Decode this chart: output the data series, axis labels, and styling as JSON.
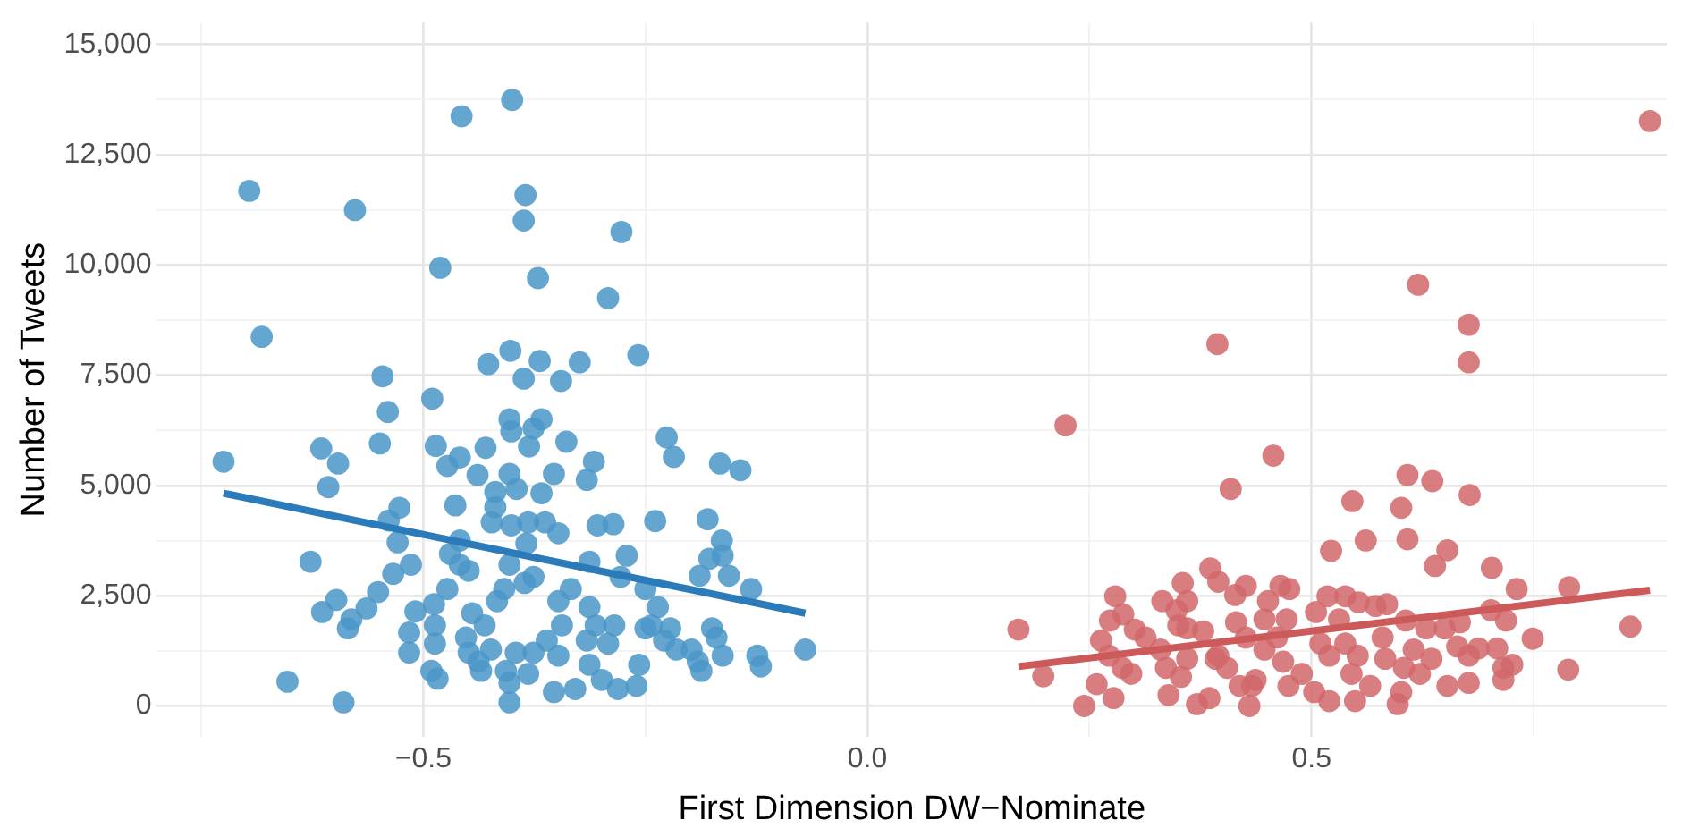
{
  "chart_data": {
    "type": "scatter",
    "xlabel": "First Dimension DW−Nominate",
    "ylabel": "Number of Tweets",
    "xlim": [
      -0.8,
      0.9
    ],
    "ylim": [
      -700,
      15500
    ],
    "xticks": [
      {
        "value": -0.75,
        "label": null
      },
      {
        "value": -0.5,
        "label": "−0.5"
      },
      {
        "value": -0.25,
        "label": null
      },
      {
        "value": 0,
        "label": "0.0"
      },
      {
        "value": 0.25,
        "label": null
      },
      {
        "value": 0.5,
        "label": "0.5"
      },
      {
        "value": 0.75,
        "label": null
      }
    ],
    "yticks": [
      {
        "value": 0,
        "label": "0"
      },
      {
        "value": 1250,
        "label": null
      },
      {
        "value": 2500,
        "label": "2,500"
      },
      {
        "value": 3750,
        "label": null
      },
      {
        "value": 5000,
        "label": "5,000"
      },
      {
        "value": 6250,
        "label": null
      },
      {
        "value": 7500,
        "label": "7,500"
      },
      {
        "value": 8750,
        "label": null
      },
      {
        "value": 10000,
        "label": "10,000"
      },
      {
        "value": 11250,
        "label": null
      },
      {
        "value": 12500,
        "label": "12,500"
      },
      {
        "value": 13750,
        "label": null
      },
      {
        "value": 15000,
        "label": "15,000"
      }
    ],
    "grid": true,
    "legend": false,
    "marker": "circle",
    "series": [
      {
        "type": "scatter",
        "color": "#4a96c9",
        "x": [
          -0.4,
          -0.457,
          -0.696,
          -0.577,
          -0.385,
          -0.387,
          -0.277,
          -0.481,
          -0.371,
          -0.292,
          -0.682,
          -0.402,
          -0.427,
          -0.369,
          -0.324,
          -0.258,
          -0.546,
          -0.387,
          -0.345,
          -0.49,
          -0.54,
          -0.725,
          -0.615,
          -0.596,
          -0.549,
          -0.607,
          -0.486,
          -0.473,
          -0.459,
          -0.43,
          -0.403,
          -0.376,
          -0.367,
          -0.401,
          -0.381,
          -0.339,
          -0.308,
          -0.316,
          -0.439,
          -0.403,
          -0.395,
          -0.367,
          -0.353,
          -0.419,
          -0.419,
          -0.464,
          -0.527,
          -0.539,
          -0.423,
          -0.401,
          -0.382,
          -0.363,
          -0.348,
          -0.304,
          -0.286,
          -0.239,
          -0.226,
          -0.218,
          -0.166,
          -0.143,
          -0.18,
          -0.164,
          -0.163,
          -0.178,
          -0.189,
          -0.156,
          -0.131,
          -0.627,
          -0.529,
          -0.534,
          -0.514,
          -0.551,
          -0.598,
          -0.564,
          -0.614,
          -0.581,
          -0.585,
          -0.509,
          -0.516,
          -0.516,
          -0.488,
          -0.487,
          -0.487,
          -0.473,
          -0.449,
          -0.459,
          -0.47,
          -0.384,
          -0.376,
          -0.386,
          -0.409,
          -0.417,
          -0.445,
          -0.431,
          -0.452,
          -0.438,
          -0.407,
          -0.382,
          -0.403,
          -0.403,
          -0.491,
          -0.484,
          -0.653,
          -0.59,
          -0.353,
          -0.329,
          -0.299,
          -0.281,
          -0.26,
          -0.257,
          -0.313,
          -0.348,
          -0.361,
          -0.344,
          -0.348,
          -0.334,
          -0.313,
          -0.306,
          -0.316,
          -0.285,
          -0.292,
          -0.313,
          -0.271,
          -0.278,
          -0.25,
          -0.236,
          -0.243,
          -0.25,
          -0.222,
          -0.229,
          -0.215,
          -0.198,
          -0.187,
          -0.191,
          -0.175,
          -0.17,
          -0.163,
          -0.124,
          -0.12,
          -0.07,
          -0.396,
          -0.376,
          -0.424,
          -0.449,
          -0.435,
          -0.459,
          -0.403
        ],
        "values": [
          13745,
          13375,
          11683,
          11246,
          11588,
          11011,
          10751,
          9939,
          9704,
          9250,
          8372,
          8054,
          7753,
          7823,
          7794,
          7959,
          7477,
          7423,
          7370,
          6970,
          6668,
          5540,
          5842,
          5498,
          5953,
          4963,
          5897,
          5444,
          5636,
          5856,
          6502,
          6296,
          6502,
          6227,
          5884,
          5993,
          5540,
          5127,
          5237,
          5265,
          4921,
          4825,
          5265,
          4853,
          4509,
          4550,
          4495,
          4206,
          4165,
          4096,
          4165,
          4165,
          3918,
          4096,
          4124,
          4193,
          6090,
          5650,
          5498,
          5347,
          4234,
          3753,
          3409,
          3340,
          2955,
          2955,
          2653,
          3272,
          3712,
          2997,
          3203,
          2584,
          2406,
          2213,
          2131,
          1965,
          1760,
          2144,
          1663,
          1210,
          2309,
          1828,
          1416,
          2653,
          3066,
          3753,
          3450,
          3684,
          2929,
          2790,
          2653,
          2378,
          2103,
          1828,
          1553,
          1004,
          797,
          729,
          522,
          82,
          797,
          619,
          550,
          82,
          316,
          385,
          591,
          385,
          454,
          935,
          935,
          1141,
          1485,
          1828,
          2378,
          2653,
          2241,
          1828,
          1485,
          1828,
          1416,
          3272,
          3409,
          2929,
          2653,
          2241,
          1828,
          1760,
          1760,
          1485,
          1278,
          1278,
          797,
          1004,
          1760,
          1553,
          1141,
          1141,
          897,
          1278,
          1210,
          1210,
          1278,
          1210,
          797,
          3203,
          3203
        ]
      },
      {
        "type": "scatter",
        "color": "#d1676a",
        "x": [
          0.881,
          0.62,
          0.677,
          0.677,
          0.394,
          0.223,
          0.457,
          0.409,
          0.546,
          0.608,
          0.636,
          0.678,
          0.601,
          0.561,
          0.608,
          0.653,
          0.522,
          0.639,
          0.703,
          0.731,
          0.79,
          0.859,
          0.789,
          0.749,
          0.17,
          0.198,
          0.244,
          0.277,
          0.258,
          0.263,
          0.273,
          0.279,
          0.288,
          0.301,
          0.313,
          0.287,
          0.297,
          0.272,
          0.332,
          0.348,
          0.355,
          0.35,
          0.36,
          0.336,
          0.33,
          0.339,
          0.371,
          0.385,
          0.353,
          0.36,
          0.386,
          0.395,
          0.414,
          0.426,
          0.415,
          0.392,
          0.405,
          0.419,
          0.43,
          0.437,
          0.426,
          0.447,
          0.447,
          0.465,
          0.475,
          0.451,
          0.472,
          0.461,
          0.468,
          0.474,
          0.489,
          0.503,
          0.52,
          0.505,
          0.518,
          0.538,
          0.553,
          0.572,
          0.585,
          0.531,
          0.51,
          0.52,
          0.538,
          0.552,
          0.545,
          0.549,
          0.566,
          0.58,
          0.583,
          0.597,
          0.601,
          0.604,
          0.606,
          0.615,
          0.622,
          0.629,
          0.635,
          0.65,
          0.653,
          0.667,
          0.664,
          0.677,
          0.677,
          0.688,
          0.702,
          0.709,
          0.716,
          0.716,
          0.726,
          0.719,
          0.395,
          0.433,
          0.378,
          0.36
        ],
        "values": [
          13265,
          9554,
          8647,
          7794,
          8207,
          6365,
          5677,
          4921,
          4646,
          5237,
          5100,
          4784,
          4495,
          3753,
          3780,
          3533,
          3519,
          3175,
          3134,
          2653,
          2694,
          1801,
          825,
          1526,
          1732,
          674,
          0,
          179,
          495,
          1485,
          1938,
          2488,
          2076,
          1732,
          1553,
          866,
          729,
          1141,
          2378,
          2172,
          2790,
          1828,
          1760,
          866,
          1278,
          247,
          41,
          179,
          660,
          1072,
          3120,
          2818,
          2516,
          2722,
          1897,
          1072,
          866,
          454,
          0,
          591,
          1553,
          1278,
          1965,
          2722,
          2653,
          2378,
          1965,
          1553,
          1004,
          454,
          729,
          316,
          110,
          2131,
          2488,
          2488,
          2351,
          2268,
          2309,
          1965,
          1416,
          1141,
          1416,
          1141,
          729,
          110,
          454,
          1553,
          1072,
          41,
          316,
          866,
          1938,
          1278,
          729,
          1760,
          1072,
          1760,
          454,
          1897,
          1349,
          1141,
          524,
          1307,
          2172,
          1307,
          866,
          591,
          936,
          1938,
          1141,
          454,
          1691,
          2378
        ]
      },
      {
        "type": "line",
        "color": "#2b7bba",
        "x": [
          -0.725,
          -0.07
        ],
        "values": [
          4825,
          2103
        ],
        "marker": "none"
      },
      {
        "type": "line",
        "color": "#cc5a5a",
        "x": [
          0.17,
          0.881
        ],
        "values": [
          895,
          2627
        ],
        "marker": "none"
      }
    ]
  }
}
